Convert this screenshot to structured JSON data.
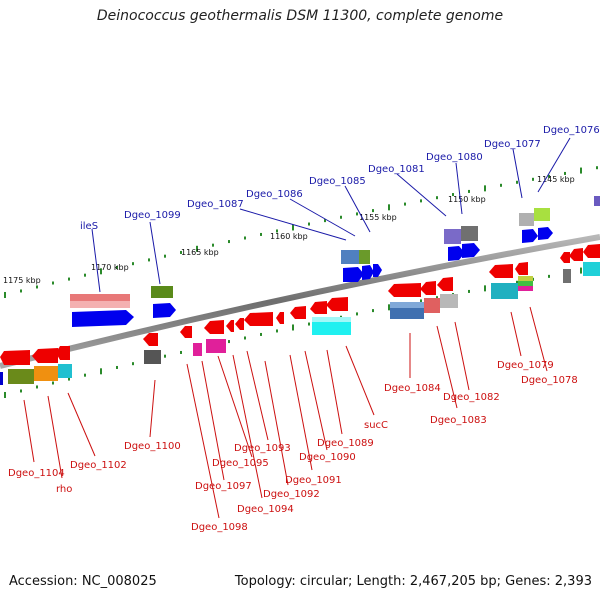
{
  "header": {
    "title": "Deinococcus geothermalis DSM 11300, complete genome"
  },
  "footer": {
    "accession": "Accession: NC_008025",
    "summary": "Topology: circular; Length: 2,467,205 bp; Genes: 2,393"
  },
  "axis": {
    "ticks": [
      "1175 kbp",
      "1170 kbp",
      "1165 kbp",
      "1160 kbp",
      "1155 kbp",
      "1150 kbp",
      "1145 kbp"
    ]
  },
  "genes": {
    "forward": [
      "Dgeo_1076",
      "Dgeo_1077",
      "Dgeo_1080",
      "Dgeo_1081",
      "Dgeo_1085",
      "Dgeo_1086",
      "Dgeo_1087",
      "Dgeo_1099",
      "ileS"
    ],
    "reverse": [
      "Dgeo_1079",
      "Dgeo_1078",
      "Dgeo_1084",
      "Dgeo_1082",
      "Dgeo_1083",
      "sucC",
      "Dgeo_1089",
      "Dgeo_1090",
      "Dgeo_1091",
      "Dgeo_1092",
      "Dgeo_1093",
      "Dgeo_1094",
      "Dgeo_1095",
      "Dgeo_1097",
      "Dgeo_1098",
      "Dgeo_1100",
      "Dgeo_1102",
      "Dgeo_1104",
      "rho"
    ]
  },
  "colors": {
    "forward_strand": "#0000ee",
    "reverse_strand": "#ee0000",
    "backbone": "#808080",
    "tick": "#2a8a2a"
  }
}
